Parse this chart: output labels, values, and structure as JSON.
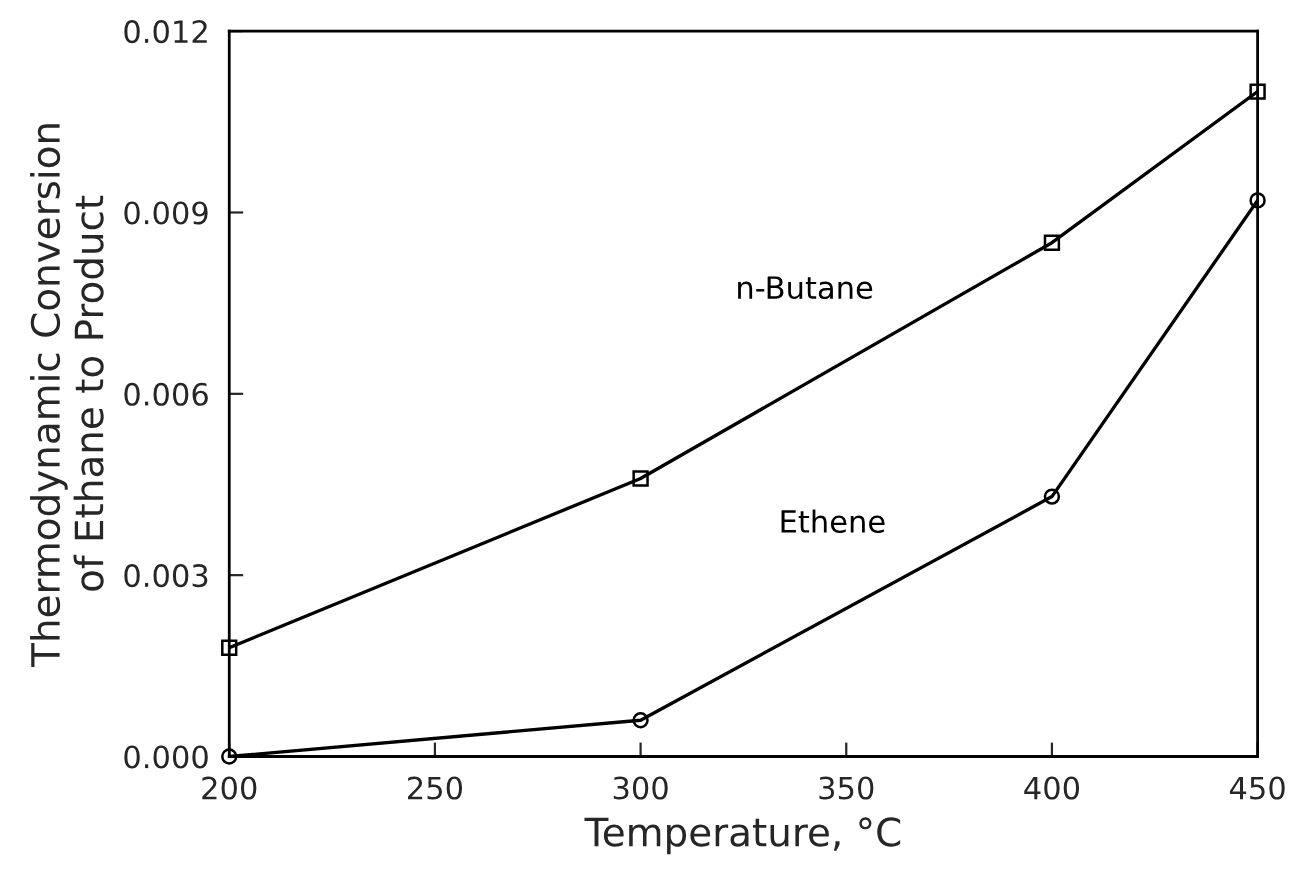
{
  "chart_data": {
    "type": "line",
    "xlabel": "Temperature, °C",
    "ylabel": "Thermodynamic Conversion\nof Ethane to Product",
    "x": [
      200,
      300,
      400,
      450
    ],
    "series": [
      {
        "name": "n-Butane",
        "color": "#000000",
        "marker": "square",
        "values": [
          0.0018,
          0.0046,
          0.0085,
          0.011
        ]
      },
      {
        "name": "Ethene",
        "color": "#000000",
        "marker": "circle",
        "values": [
          0.0,
          0.0006,
          0.0043,
          0.0092
        ]
      }
    ],
    "xlim": [
      200,
      450
    ],
    "xticks": [
      200,
      250,
      300,
      350,
      400,
      450
    ],
    "ylim": [
      0,
      0.012
    ],
    "yticks": [
      {
        "value": 0,
        "label": "0.000"
      },
      {
        "value": 0.003,
        "label": "0.003"
      },
      {
        "value": 0.006,
        "label": "0.006"
      },
      {
        "value": 0.009,
        "label": "0.009"
      },
      {
        "value": 0.012,
        "label": "0.012"
      }
    ],
    "grid": false,
    "legend": false,
    "line_style": "solid"
  }
}
